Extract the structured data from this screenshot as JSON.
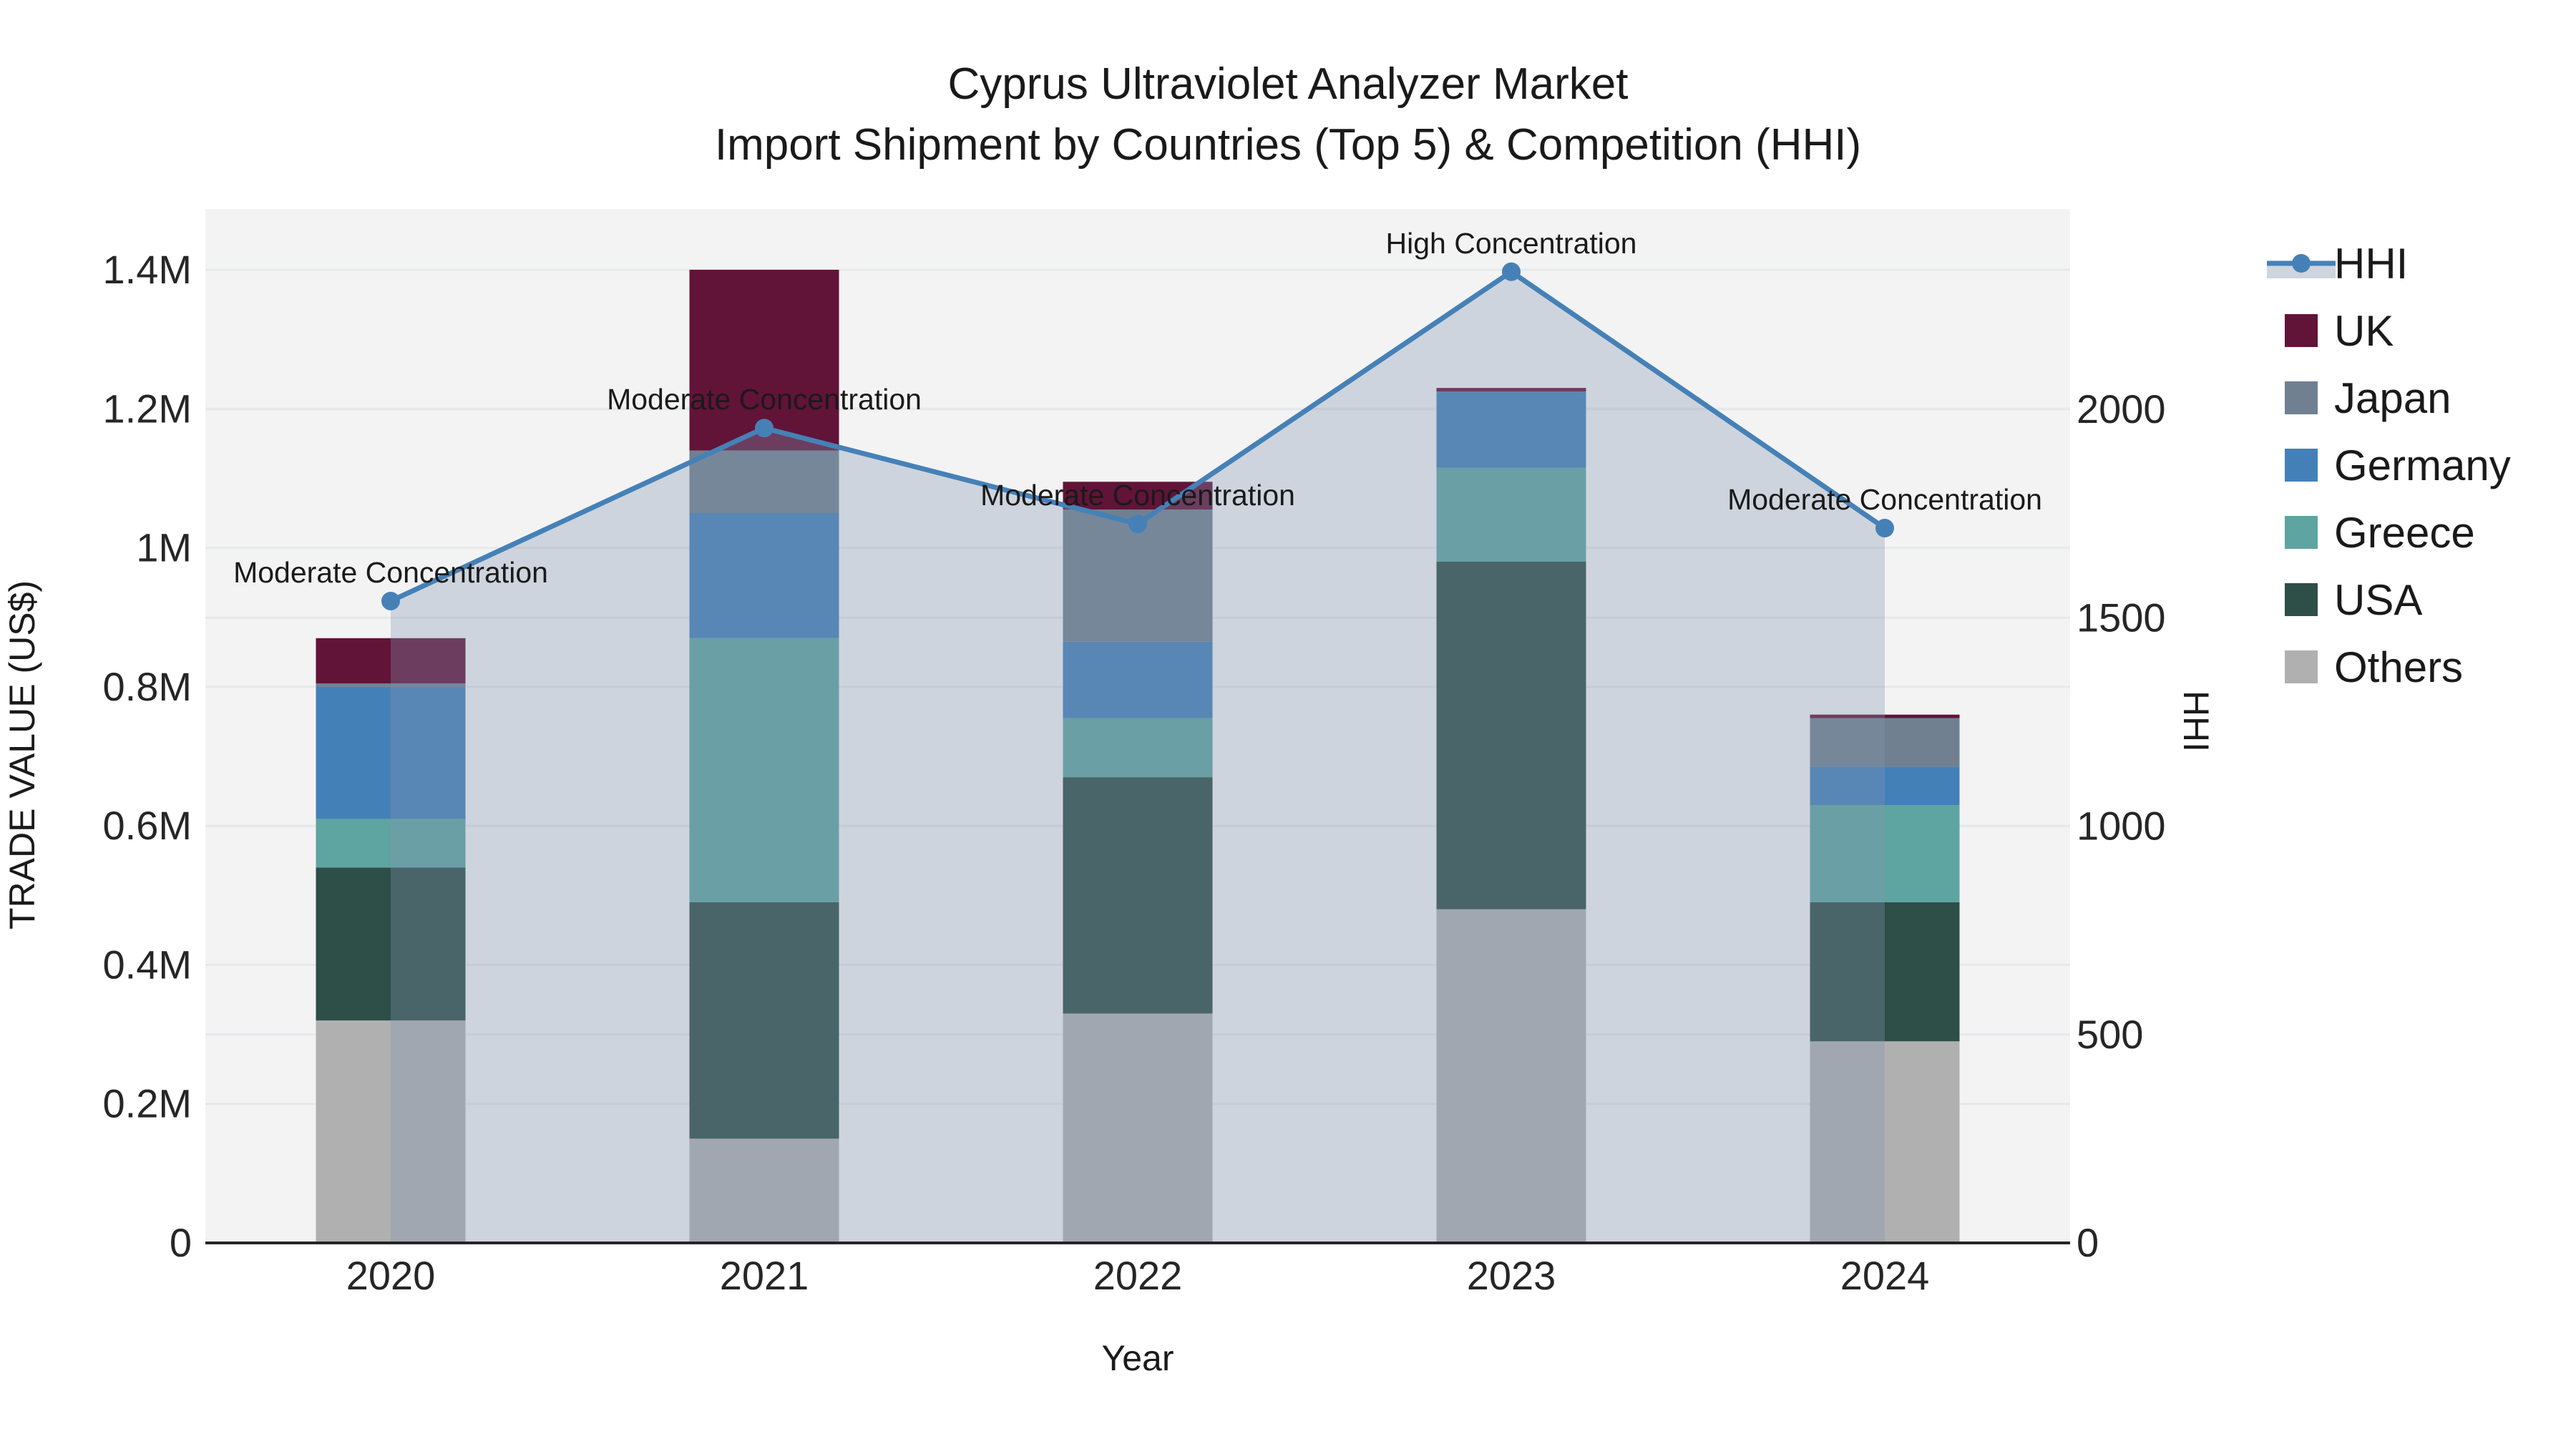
{
  "title": {
    "line1": "Cyprus Ultraviolet Analyzer Market",
    "line2": "Import Shipment by Countries (Top 5) & Competition (HHI)"
  },
  "axes": {
    "x_label": "Year",
    "y_left_label": "TRADE VALUE (US$)",
    "y_right_label": "HHI",
    "y_left_ticks": [
      {
        "value": 0,
        "label": "0"
      },
      {
        "value": 0.2,
        "label": "0.2M"
      },
      {
        "value": 0.4,
        "label": "0.4M"
      },
      {
        "value": 0.6,
        "label": "0.6M"
      },
      {
        "value": 0.8,
        "label": "0.8M"
      },
      {
        "value": 1.0,
        "label": "1M"
      },
      {
        "value": 1.2,
        "label": "1.2M"
      },
      {
        "value": 1.4,
        "label": "1.4M"
      }
    ],
    "y_right_ticks": [
      {
        "value": 0,
        "label": "0"
      },
      {
        "value": 500,
        "label": "500"
      },
      {
        "value": 1000,
        "label": "1000"
      },
      {
        "value": 1500,
        "label": "1500"
      },
      {
        "value": 2000,
        "label": "2000"
      }
    ]
  },
  "legend": {
    "items": [
      {
        "label": "HHI",
        "type": "line"
      },
      {
        "label": "UK",
        "type": "patch",
        "color": "#621338"
      },
      {
        "label": "Japan",
        "type": "patch",
        "color": "#708090"
      },
      {
        "label": "Germany",
        "type": "patch",
        "color": "#4480b8"
      },
      {
        "label": "Greece",
        "type": "patch",
        "color": "#5ea4a1"
      },
      {
        "label": "USA",
        "type": "patch",
        "color": "#2e4e48"
      },
      {
        "label": "Others",
        "type": "patch",
        "color": "#b0b0b0"
      }
    ]
  },
  "colors": {
    "plot_background": "#f3f3f3",
    "gridline": "#e7e8ea",
    "hhi_line": "#4581b7",
    "hhi_area_fill": "rgba(130,150,175,0.33)",
    "axis_spine": "#262626"
  },
  "chart_data": {
    "type": "combo_stacked_bar_line",
    "title": "Cyprus Ultraviolet Analyzer Market — Import Shipment by Countries (Top 5) & Competition (HHI)",
    "categories": [
      "2020",
      "2021",
      "2022",
      "2023",
      "2024"
    ],
    "bar_unit": "M US$ (trade value)",
    "series": [
      {
        "name": "Others",
        "color": "#b0b0b0",
        "values": [
          0.32,
          0.15,
          0.33,
          0.48,
          0.29
        ]
      },
      {
        "name": "USA",
        "color": "#2e4e48",
        "values": [
          0.22,
          0.34,
          0.34,
          0.5,
          0.2
        ]
      },
      {
        "name": "Greece",
        "color": "#5ea4a1",
        "values": [
          0.07,
          0.38,
          0.085,
          0.135,
          0.14
        ]
      },
      {
        "name": "Germany",
        "color": "#4480b8",
        "values": [
          0.19,
          0.18,
          0.11,
          0.11,
          0.055
        ]
      },
      {
        "name": "Japan",
        "color": "#708090",
        "values": [
          0.005,
          0.09,
          0.19,
          0.0,
          0.07
        ]
      },
      {
        "name": "UK",
        "color": "#621338",
        "values": [
          0.065,
          0.26,
          0.04,
          0.005,
          0.005
        ]
      }
    ],
    "bar_totals": [
      0.87,
      1.4,
      1.095,
      1.23,
      0.76
    ],
    "line_series": {
      "name": "HHI",
      "color": "#4581b7",
      "values": [
        1540,
        1955,
        1725,
        2330,
        1715
      ],
      "area_under_line": true
    },
    "annotations": [
      {
        "category": "2020",
        "text": "Moderate Concentration"
      },
      {
        "category": "2021",
        "text": "Moderate Concentration"
      },
      {
        "category": "2022",
        "text": "Moderate Concentration"
      },
      {
        "category": "2023",
        "text": "High Concentration"
      },
      {
        "category": "2024",
        "text": "Moderate Concentration"
      }
    ],
    "xlabel": "Year",
    "ylabel_left": "TRADE VALUE (US$)",
    "ylabel_right": "HHI",
    "ylim_left": [
      0,
      1.45
    ],
    "ylim_right": [
      0,
      2480
    ],
    "grid": true,
    "legend_position": "right"
  }
}
